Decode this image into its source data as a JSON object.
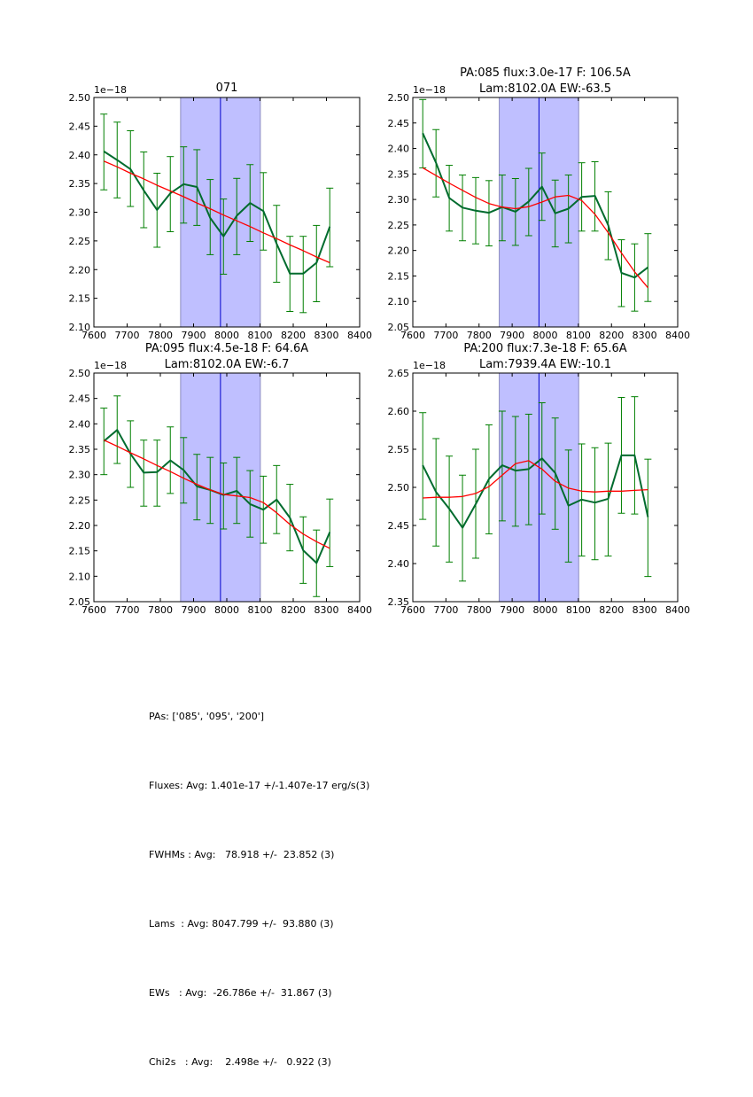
{
  "chart_data": [
    {
      "type": "line",
      "title": "071",
      "exponent_label": "1e−18",
      "xlabel": "",
      "ylabel": "",
      "xlim": [
        7600,
        8400
      ],
      "ylim": [
        2.1,
        2.5
      ],
      "xticks": [
        7600,
        7700,
        7800,
        7900,
        8000,
        8100,
        8200,
        8300,
        8400
      ],
      "yticks": [
        "2.10",
        "2.15",
        "2.20",
        "2.25",
        "2.30",
        "2.35",
        "2.40",
        "2.45",
        "2.50"
      ],
      "shaded_band": [
        7861,
        8101
      ],
      "vline": 7981,
      "x": [
        7630,
        7670,
        7710,
        7750,
        7790,
        7830,
        7870,
        7910,
        7950,
        7990,
        8030,
        8070,
        8110,
        8150,
        8190,
        8230,
        8270,
        8310
      ],
      "series": [
        {
          "name": "data",
          "color": "#006b2e",
          "values": [
            2.406,
            2.391,
            2.375,
            2.338,
            2.304,
            2.333,
            2.349,
            2.344,
            2.29,
            2.258,
            2.294,
            2.316,
            2.302,
            2.245,
            2.193,
            2.193,
            2.212,
            2.275
          ],
          "err_low": [
            2.339,
            2.325,
            2.31,
            2.273,
            2.239,
            2.266,
            2.281,
            2.277,
            2.226,
            2.192,
            2.226,
            2.249,
            2.234,
            2.178,
            2.127,
            2.125,
            2.144,
            2.205
          ],
          "err_high": [
            2.471,
            2.457,
            2.442,
            2.405,
            2.368,
            2.397,
            2.414,
            2.409,
            2.357,
            2.323,
            2.359,
            2.383,
            2.369,
            2.312,
            2.258,
            2.258,
            2.277,
            2.342
          ]
        },
        {
          "name": "fit",
          "color": "#ff0000",
          "values": [
            2.389,
            2.379,
            2.368,
            2.358,
            2.347,
            2.337,
            2.327,
            2.316,
            2.306,
            2.295,
            2.285,
            2.275,
            2.264,
            2.254,
            2.243,
            2.233,
            2.222,
            2.212
          ]
        }
      ]
    },
    {
      "type": "line",
      "title": "PA:085 flux:3.0e-17 F: 106.5A",
      "title2": "Lam:8102.0A EW:-63.5",
      "exponent_label": "1e−18",
      "xlabel": "",
      "ylabel": "",
      "xlim": [
        7600,
        8400
      ],
      "ylim": [
        2.05,
        2.5
      ],
      "xticks": [
        7600,
        7700,
        7800,
        7900,
        8000,
        8100,
        8200,
        8300,
        8400
      ],
      "yticks": [
        "2.05",
        "2.10",
        "2.15",
        "2.20",
        "2.25",
        "2.30",
        "2.35",
        "2.40",
        "2.45",
        "2.50"
      ],
      "shaded_band": [
        7861,
        8101
      ],
      "vline": 7981,
      "x": [
        7630,
        7670,
        7710,
        7750,
        7790,
        7830,
        7870,
        7910,
        7950,
        7990,
        8030,
        8070,
        8110,
        8150,
        8190,
        8230,
        8270,
        8310
      ],
      "series": [
        {
          "name": "data",
          "color": "#006b2e",
          "values": [
            2.43,
            2.372,
            2.303,
            2.284,
            2.278,
            2.274,
            2.285,
            2.276,
            2.296,
            2.325,
            2.273,
            2.282,
            2.305,
            2.307,
            2.25,
            2.156,
            2.147,
            2.167
          ],
          "err_low": [
            2.362,
            2.305,
            2.238,
            2.219,
            2.213,
            2.209,
            2.219,
            2.21,
            2.229,
            2.259,
            2.207,
            2.215,
            2.238,
            2.238,
            2.182,
            2.09,
            2.081,
            2.1
          ],
          "err_high": [
            2.496,
            2.437,
            2.367,
            2.348,
            2.343,
            2.337,
            2.348,
            2.341,
            2.361,
            2.391,
            2.338,
            2.348,
            2.372,
            2.374,
            2.315,
            2.221,
            2.213,
            2.233
          ]
        },
        {
          "name": "fit",
          "color": "#ff0000",
          "values": [
            2.362,
            2.347,
            2.332,
            2.318,
            2.304,
            2.292,
            2.285,
            2.282,
            2.286,
            2.295,
            2.305,
            2.308,
            2.298,
            2.271,
            2.235,
            2.195,
            2.158,
            2.127
          ]
        }
      ]
    },
    {
      "type": "line",
      "title": "PA:095 flux:4.5e-18 F: 64.6A",
      "title2": "Lam:8102.0A EW:-6.7",
      "exponent_label": "1e−18",
      "xlabel": "",
      "ylabel": "",
      "xlim": [
        7600,
        8400
      ],
      "ylim": [
        2.05,
        2.5
      ],
      "xticks": [
        7600,
        7700,
        7800,
        7900,
        8000,
        8100,
        8200,
        8300,
        8400
      ],
      "yticks": [
        "2.05",
        "2.10",
        "2.15",
        "2.20",
        "2.25",
        "2.30",
        "2.35",
        "2.40",
        "2.45",
        "2.50"
      ],
      "shaded_band": [
        7861,
        8101
      ],
      "vline": 7981,
      "x": [
        7630,
        7670,
        7710,
        7750,
        7790,
        7830,
        7870,
        7910,
        7950,
        7990,
        8030,
        8070,
        8110,
        8150,
        8190,
        8230,
        8270,
        8310
      ],
      "series": [
        {
          "name": "data",
          "color": "#006b2e",
          "values": [
            2.366,
            2.388,
            2.341,
            2.304,
            2.305,
            2.328,
            2.309,
            2.277,
            2.27,
            2.26,
            2.268,
            2.242,
            2.231,
            2.251,
            2.215,
            2.151,
            2.126,
            2.187
          ],
          "err_low": [
            2.3,
            2.322,
            2.275,
            2.238,
            2.238,
            2.263,
            2.244,
            2.211,
            2.204,
            2.193,
            2.204,
            2.177,
            2.165,
            2.184,
            2.15,
            2.086,
            2.06,
            2.119
          ],
          "err_high": [
            2.431,
            2.455,
            2.406,
            2.368,
            2.368,
            2.394,
            2.373,
            2.34,
            2.334,
            2.323,
            2.334,
            2.308,
            2.297,
            2.318,
            2.281,
            2.217,
            2.191,
            2.252
          ]
        },
        {
          "name": "fit",
          "color": "#ff0000",
          "values": [
            2.368,
            2.356,
            2.343,
            2.331,
            2.318,
            2.306,
            2.293,
            2.281,
            2.27,
            2.261,
            2.258,
            2.255,
            2.245,
            2.225,
            2.202,
            2.183,
            2.168,
            2.155
          ]
        }
      ]
    },
    {
      "type": "line",
      "title": "PA:200 flux:7.3e-18 F: 65.6A",
      "title2": "Lam:7939.4A EW:-10.1",
      "exponent_label": "1e−18",
      "xlabel": "",
      "ylabel": "",
      "xlim": [
        7600,
        8400
      ],
      "ylim": [
        2.35,
        2.65
      ],
      "xticks": [
        7600,
        7700,
        7800,
        7900,
        8000,
        8100,
        8200,
        8300,
        8400
      ],
      "yticks": [
        "2.35",
        "2.40",
        "2.45",
        "2.50",
        "2.55",
        "2.60",
        "2.65"
      ],
      "shaded_band": [
        7861,
        8101
      ],
      "vline": 7981,
      "x": [
        7630,
        7670,
        7710,
        7750,
        7790,
        7830,
        7870,
        7910,
        7950,
        7990,
        8030,
        8070,
        8110,
        8150,
        8190,
        8230,
        8270,
        8310
      ],
      "series": [
        {
          "name": "data",
          "color": "#006b2e",
          "values": [
            2.529,
            2.494,
            2.472,
            2.447,
            2.478,
            2.511,
            2.529,
            2.522,
            2.524,
            2.538,
            2.519,
            2.476,
            2.484,
            2.48,
            2.485,
            2.542,
            2.542,
            2.461
          ],
          "err_low": [
            2.458,
            2.423,
            2.402,
            2.377,
            2.407,
            2.439,
            2.456,
            2.449,
            2.451,
            2.465,
            2.445,
            2.402,
            2.41,
            2.405,
            2.41,
            2.466,
            2.465,
            2.383
          ],
          "err_high": [
            2.598,
            2.564,
            2.541,
            2.516,
            2.55,
            2.582,
            2.6,
            2.593,
            2.596,
            2.611,
            2.591,
            2.549,
            2.557,
            2.552,
            2.558,
            2.618,
            2.619,
            2.537
          ]
        },
        {
          "name": "fit",
          "color": "#ff0000",
          "values": [
            2.486,
            2.487,
            2.487,
            2.488,
            2.492,
            2.501,
            2.516,
            2.531,
            2.535,
            2.524,
            2.508,
            2.499,
            2.495,
            2.494,
            2.495,
            2.495,
            2.496,
            2.497
          ]
        }
      ]
    }
  ],
  "colors": {
    "band": "#bfbfff",
    "band_edge": "#8c8cc0",
    "vline": "#0000cc",
    "errorbar": "#007f00"
  },
  "stats": [
    "PAs: ['085', '095', '200']",
    "Fluxes: Avg: 1.401e-17 +/-1.407e-17 erg/s(3)",
    "FWHMs : Avg:   78.918 +/-  23.852 (3)",
    "Lams  : Avg: 8047.799 +/-  93.880 (3)",
    "EWs   : Avg:  -26.786e +/-  31.867 (3)",
    "Chi2s   : Avg:    2.498e +/-   0.922 (3)"
  ]
}
